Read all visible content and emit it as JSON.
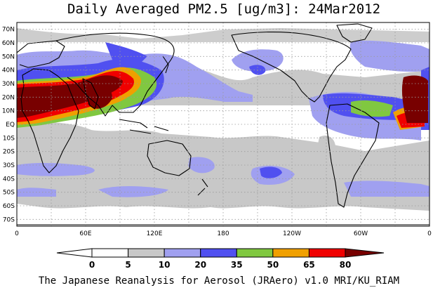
{
  "title": "Daily Averaged PM2.5 [ug/m3]: 24Mar2012",
  "credit": "The Japanese Reanalysis for Aerosol (JRAero) v1.0 MRI/KU_RIAM",
  "map": {
    "lon_range": [
      0,
      360
    ],
    "lat_range": [
      -75,
      75
    ],
    "lat_ticks": [
      "70N",
      "60N",
      "50N",
      "40N",
      "30N",
      "20N",
      "10N",
      "EQ",
      "10S",
      "20S",
      "30S",
      "40S",
      "50S",
      "60S",
      "70S"
    ],
    "lon_ticks": [
      "0",
      "60E",
      "120E",
      "180",
      "120W",
      "60W",
      "0"
    ],
    "gridlines": "dotted"
  },
  "legend": {
    "levels": [
      "0",
      "5",
      "10",
      "20",
      "35",
      "50",
      "65",
      "80"
    ],
    "colors": [
      "#ffffff",
      "#c8c8c8",
      "#a0a0f0",
      "#5050f0",
      "#80c840",
      "#f0a000",
      "#f00000",
      "#780000"
    ]
  }
}
